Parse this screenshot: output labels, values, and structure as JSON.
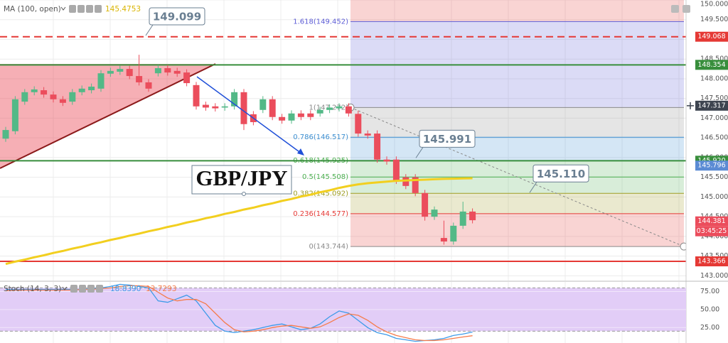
{
  "chart_data": [
    {
      "type": "candlestick",
      "symbol": "GBP/JPY",
      "ylim": [
        142.88,
        150.0
      ],
      "yticks": [
        {
          "value": 143,
          "label": "143.000"
        },
        {
          "value": 143.5,
          "label": "143.500"
        },
        {
          "value": 144,
          "label": "144.000"
        },
        {
          "value": 144.5,
          "label": "144.500"
        },
        {
          "value": 145,
          "label": "145.000"
        },
        {
          "value": 145.5,
          "label": "145.500"
        },
        {
          "value": 146,
          "label": "146.000"
        },
        {
          "value": 146.5,
          "label": "146.500"
        },
        {
          "value": 147,
          "label": "147.000"
        },
        {
          "value": 147.5,
          "label": "147.500"
        },
        {
          "value": 148,
          "label": "148.000"
        },
        {
          "value": 148.5,
          "label": "148.500"
        },
        {
          "value": 149,
          "label": "149.000"
        },
        {
          "value": 149.5,
          "label": "149.500"
        },
        {
          "value": 150,
          "label": "150.000"
        }
      ],
      "grid": true,
      "up_color": "#53b987",
      "down_color": "#eb4d5c",
      "open": [
        146.48,
        146.67,
        147.42,
        147.66,
        147.71,
        147.6,
        147.48,
        147.42,
        147.66,
        147.71,
        147.75,
        148.13,
        148.18,
        148.25,
        148.07,
        147.91,
        148.14,
        148.27,
        148.2,
        148.16,
        147.84,
        147.34,
        147.3,
        147.27,
        147.3,
        147.66,
        147.1,
        147.21,
        147.48,
        147.03,
        146.94,
        147.12,
        147.12,
        147.12,
        147.21,
        147.25,
        147.3,
        147.11,
        146.61,
        146.61,
        145.95,
        145.95,
        145.5,
        145.5,
        145.1,
        144.5,
        143.96,
        143.87,
        144.27,
        144.63
      ],
      "high": [
        146.78,
        147.56,
        147.74,
        147.81,
        147.79,
        147.68,
        147.56,
        147.74,
        147.83,
        147.88,
        148.22,
        148.28,
        148.33,
        148.33,
        148.61,
        147.99,
        148.35,
        148.35,
        148.28,
        148.24,
        147.92,
        147.42,
        147.38,
        147.38,
        147.74,
        147.74,
        147.18,
        147.56,
        147.56,
        147.11,
        147.2,
        147.2,
        147.2,
        147.29,
        147.35,
        147.38,
        147.38,
        147.19,
        146.69,
        146.69,
        146.03,
        146.03,
        145.58,
        145.58,
        145.18,
        144.76,
        144.4,
        144.35,
        144.88,
        144.71
      ],
      "low": [
        146.4,
        146.59,
        147.34,
        147.58,
        147.52,
        147.4,
        147.31,
        147.34,
        147.58,
        147.63,
        147.67,
        148.05,
        148.1,
        147.99,
        147.83,
        147.67,
        148.06,
        148.08,
        148.05,
        147.81,
        147.22,
        147.19,
        147.17,
        147.19,
        147.22,
        146.7,
        146.82,
        147.13,
        146.95,
        146.86,
        146.86,
        146.95,
        146.95,
        147.04,
        147.13,
        147.17,
        147.04,
        146.53,
        146.48,
        145.87,
        145.82,
        145.33,
        145.2,
        145.02,
        144.4,
        144.42,
        143.79,
        143.79,
        144.19,
        144.33
      ],
      "close": [
        146.7,
        147.48,
        147.66,
        147.73,
        147.6,
        147.48,
        147.39,
        147.66,
        147.75,
        147.8,
        148.14,
        148.2,
        148.25,
        148.07,
        147.91,
        147.75,
        148.27,
        148.16,
        148.13,
        147.89,
        147.3,
        147.27,
        147.25,
        147.3,
        147.66,
        146.85,
        146.9,
        147.48,
        147.03,
        146.94,
        147.12,
        147.03,
        147.03,
        147.21,
        147.27,
        147.3,
        147.12,
        146.61,
        146.56,
        145.95,
        145.9,
        145.41,
        145.28,
        145.1,
        144.5,
        144.68,
        143.87,
        144.27,
        144.63,
        144.41
      ],
      "series": [
        {
          "name": "MA (100, open)",
          "color": "#f2cf1f",
          "last_label": "145.4753",
          "values": [
            143.3,
            143.36,
            143.41,
            143.47,
            143.52,
            143.58,
            143.63,
            143.69,
            143.74,
            143.8,
            143.85,
            143.91,
            143.96,
            144.02,
            144.07,
            144.13,
            144.18,
            144.24,
            144.29,
            144.35,
            144.4,
            144.46,
            144.51,
            144.57,
            144.62,
            144.68,
            144.73,
            144.79,
            144.84,
            144.9,
            144.95,
            145.01,
            145.06,
            145.12,
            145.17,
            145.23,
            145.28,
            145.32,
            145.35,
            145.37,
            145.39,
            145.41,
            145.42,
            145.43,
            145.44,
            145.45,
            145.46,
            145.465,
            145.47,
            145.4753
          ]
        }
      ],
      "levels": [
        {
          "value": 149.068,
          "label": "149.068",
          "color": "#e53935",
          "dashed": true
        },
        {
          "value": 148.354,
          "label": "148.354",
          "color": "#388e3c",
          "dashed": false
        },
        {
          "value": 145.92,
          "label": "145.920",
          "color": "#388e3c",
          "dashed": false
        },
        {
          "value": 143.366,
          "label": "143.366",
          "color": "#e53935",
          "dashed": false
        }
      ],
      "price_markers": [
        {
          "value": 147.317,
          "label": "147.317",
          "color": "#3d4450"
        },
        {
          "value": 145.796,
          "label": "145.796",
          "color": "#5b8bd4"
        },
        {
          "value": 144.381,
          "label": "144.381",
          "color": "#eb4d5c",
          "countdown": "03:45:25"
        }
      ],
      "fib": [
        {
          "label": "1.618(149.452)",
          "value": 149.452,
          "color": "#5c5cd6"
        },
        {
          "label": "1(147.272)",
          "value": 147.272,
          "color": "#8a8a8a"
        },
        {
          "label": "0.786(146.517)",
          "value": 146.517,
          "color": "#3d8fd1"
        },
        {
          "label": "0.618(145.925)",
          "value": 145.925,
          "color": "#4caf50"
        },
        {
          "label": "0.5(145.508)",
          "value": 145.508,
          "color": "#4caf50"
        },
        {
          "label": "0.382(145.092)",
          "value": 145.092,
          "color": "#9e9d24"
        },
        {
          "label": "0.236(144.577)",
          "value": 144.577,
          "color": "#e53935"
        },
        {
          "label": "0(143.744)",
          "value": 143.744,
          "color": "#8a8a8a"
        }
      ],
      "callouts": [
        {
          "value": 149.099,
          "label": "149.099"
        },
        {
          "value": 145.991,
          "label": "145.991"
        },
        {
          "value": 145.11,
          "label": "145.110"
        }
      ]
    },
    {
      "type": "line",
      "title": "Stoch (14, 3, 3)",
      "ylim": [
        3.6,
        88.3
      ],
      "yticks": [
        {
          "value": 25,
          "label": "25.00"
        },
        {
          "value": 50,
          "label": "50.00"
        },
        {
          "value": 75,
          "label": "75.00"
        }
      ],
      "band": [
        20,
        80
      ],
      "band_color": "#e2cdf7",
      "series": [
        {
          "color": "#3d9be9",
          "last_label": "18.8390",
          "values": [
            78,
            78,
            78,
            78,
            78,
            78,
            78,
            78,
            78,
            79,
            80,
            82,
            85,
            84,
            82,
            80,
            62,
            60,
            65,
            70,
            62,
            45,
            28,
            20,
            18,
            20,
            22,
            25,
            28,
            30,
            26,
            22,
            24,
            30,
            40,
            48,
            45,
            35,
            25,
            18,
            15,
            10,
            8,
            6,
            7,
            8,
            10,
            14,
            16,
            18.839
          ]
        },
        {
          "color": "#f57c4c",
          "last_label": "13.7293",
          "values": [
            76,
            77,
            77,
            77,
            77,
            77,
            77,
            77,
            78,
            78,
            79,
            80,
            82,
            83,
            83,
            82,
            74,
            66,
            62,
            64,
            64,
            58,
            45,
            32,
            22,
            19,
            20,
            22,
            25,
            27,
            28,
            26,
            24,
            26,
            32,
            39,
            44,
            42,
            35,
            26,
            19,
            14,
            11,
            8,
            7,
            7,
            8,
            10,
            12,
            13.7293
          ]
        }
      ]
    }
  ]
}
